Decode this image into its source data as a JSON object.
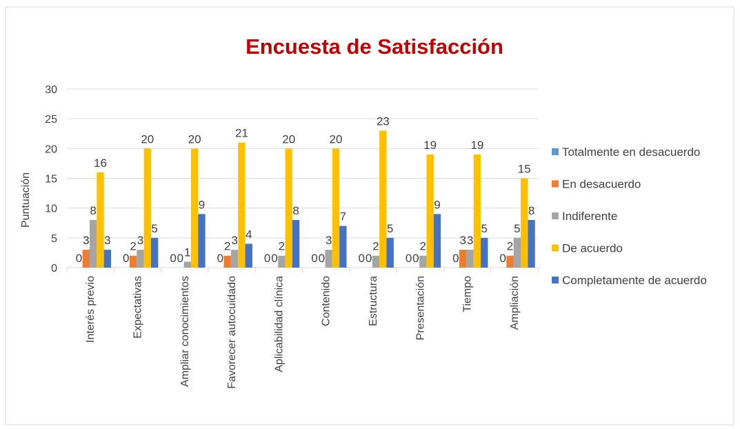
{
  "chart_data": {
    "type": "bar",
    "title": "Encuesta de Satisfacción",
    "y_label": "Puntuación",
    "categories": [
      "Interés previo",
      "Expectativas",
      "Ampliar conocimientos",
      "Favorecer autocuidado",
      "Aplicabilidad clínica",
      "Contenido",
      "Estructura",
      "Presentación",
      "Tiempo",
      "Ampliación"
    ],
    "series": [
      {
        "name": "Totalmente en desacuerdo",
        "color": "#5b9bd5",
        "values": [
          0,
          0,
          0,
          0,
          0,
          0,
          0,
          0,
          0,
          0
        ]
      },
      {
        "name": "En desacuerdo",
        "color": "#ed7d31",
        "values": [
          3,
          2,
          0,
          2,
          0,
          0,
          0,
          0,
          3,
          2
        ]
      },
      {
        "name": "Indiferente",
        "color": "#a5a5a5",
        "values": [
          8,
          3,
          1,
          3,
          2,
          3,
          2,
          2,
          3,
          5
        ]
      },
      {
        "name": "De acuerdo",
        "color": "#ffc000",
        "values": [
          16,
          20,
          20,
          21,
          20,
          20,
          23,
          19,
          19,
          15
        ]
      },
      {
        "name": "Completamente de acuerdo",
        "color": "#4472c4",
        "values": [
          3,
          5,
          9,
          4,
          8,
          7,
          5,
          9,
          5,
          8
        ]
      }
    ],
    "ylim": [
      0,
      30
    ],
    "yticks": [
      0,
      5,
      10,
      15,
      20,
      25,
      30
    ],
    "grid": true,
    "legend": "right"
  }
}
